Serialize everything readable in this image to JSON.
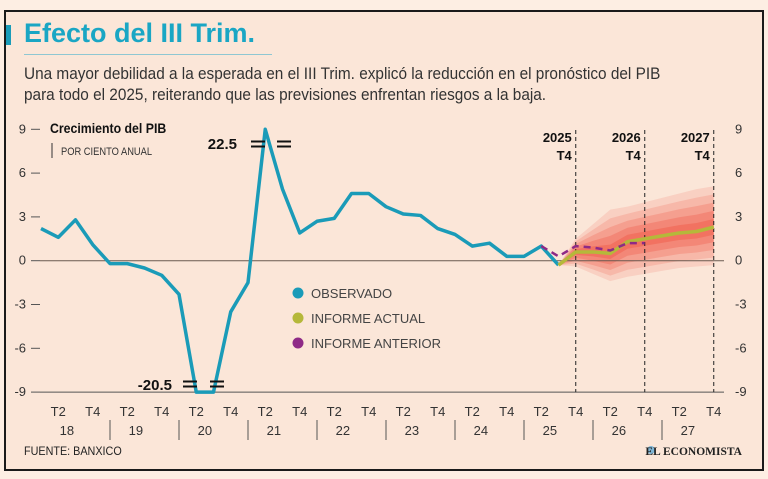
{
  "header": {
    "title": "Efecto del III Trim.",
    "subtitle": "Una mayor debilidad a la esperada en el III Trim. explicó la reducción en el pronóstico del PIB para todo el 2025, reiterando que las previsiones enfrentan riesgos a la baja."
  },
  "footer": {
    "source": "FUENTE: BANXICO",
    "brand": "EL ECONOMISTA"
  },
  "chart_data": {
    "type": "line",
    "title": "Crecimiento del PIB",
    "subtitle": "POR CIENTO ANUAL",
    "ylim": [
      -9,
      9
    ],
    "yticks": [
      9,
      6,
      3,
      0,
      -3,
      -6,
      -9
    ],
    "x_start": "2018 T1",
    "quarter_labels": [
      "T2",
      "T4"
    ],
    "years": [
      "18",
      "19",
      "20",
      "21",
      "22",
      "23",
      "24",
      "25",
      "26",
      "27"
    ],
    "break_labels": {
      "high": "22.5",
      "low": "-20.5"
    },
    "markers": [
      {
        "year": "2025",
        "quarter": "T4",
        "index": 31
      },
      {
        "year": "2026",
        "quarter": "T4",
        "index": 35
      },
      {
        "year": "2027",
        "quarter": "T4",
        "index": 39
      }
    ],
    "series": [
      {
        "name": "OBSERVADO",
        "color": "#1a9bb8",
        "start_index": 0,
        "values": [
          2.2,
          1.6,
          2.8,
          1.1,
          -0.2,
          -0.2,
          -0.5,
          -1.0,
          -2.3,
          -20.5,
          -9.0,
          -3.5,
          -1.5,
          22.5,
          4.9,
          1.9,
          2.7,
          2.9,
          4.6,
          4.6,
          3.7,
          3.2,
          3.1,
          2.2,
          1.8,
          1.0,
          1.2,
          0.3,
          0.3,
          1.0,
          -0.3
        ]
      },
      {
        "name": "INFORME ACTUAL",
        "color": "#b5b83a",
        "start_index": 30,
        "values": [
          -0.3,
          0.6,
          0.6,
          0.5,
          1.3,
          1.5,
          1.7,
          1.9,
          2.0,
          2.3
        ]
      },
      {
        "name": "INFORME ANTERIOR",
        "color": "#8e2a86",
        "start_index": 29,
        "dashed": true,
        "values": [
          1.0,
          0.3,
          1.0,
          0.9,
          0.7,
          1.2,
          1.2
        ]
      }
    ],
    "fan": {
      "start_index": 30,
      "color": "#f0402e",
      "upper": [
        -0.3,
        1.5,
        2.5,
        3.5,
        3.7,
        4.0,
        4.3,
        4.6,
        4.9,
        5.1
      ],
      "lower": [
        -0.3,
        -0.4,
        -0.9,
        -1.4,
        -1.1,
        -0.9,
        -0.7,
        -0.5,
        -0.4,
        -0.3
      ]
    }
  }
}
